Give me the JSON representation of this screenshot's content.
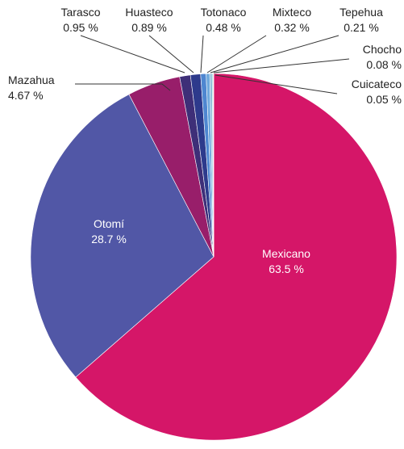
{
  "chart_data": {
    "type": "pie",
    "title": "",
    "series": [
      {
        "name": "Mexicano",
        "value": 63.5,
        "display": "63.5 %",
        "color": "#d51668"
      },
      {
        "name": "Otomí",
        "value": 28.7,
        "display": "28.7 %",
        "color": "#5157a6"
      },
      {
        "name": "Mazahua",
        "value": 4.67,
        "display": "4.67 %",
        "color": "#981e6a"
      },
      {
        "name": "Tarasco",
        "value": 0.95,
        "display": "0.95 %",
        "color": "#3e2f78"
      },
      {
        "name": "Huasteco",
        "value": 0.89,
        "display": "0.89 %",
        "color": "#2d3a8c"
      },
      {
        "name": "Totonaco",
        "value": 0.48,
        "display": "0.48 %",
        "color": "#4e86d0"
      },
      {
        "name": "Mixteco",
        "value": 0.32,
        "display": "0.32 %",
        "color": "#6fa8dc"
      },
      {
        "name": "Tepehua",
        "value": 0.21,
        "display": "0.21 %",
        "color": "#8fbcd8"
      },
      {
        "name": "Chocho",
        "value": 0.08,
        "display": "0.08 %",
        "color": "#86c7c9"
      },
      {
        "name": "Cuicateco",
        "value": 0.05,
        "display": "0.05 %",
        "color": "#9bcfcf"
      }
    ],
    "legend": "none",
    "data_labels": "outside with leader lines for small slices"
  }
}
